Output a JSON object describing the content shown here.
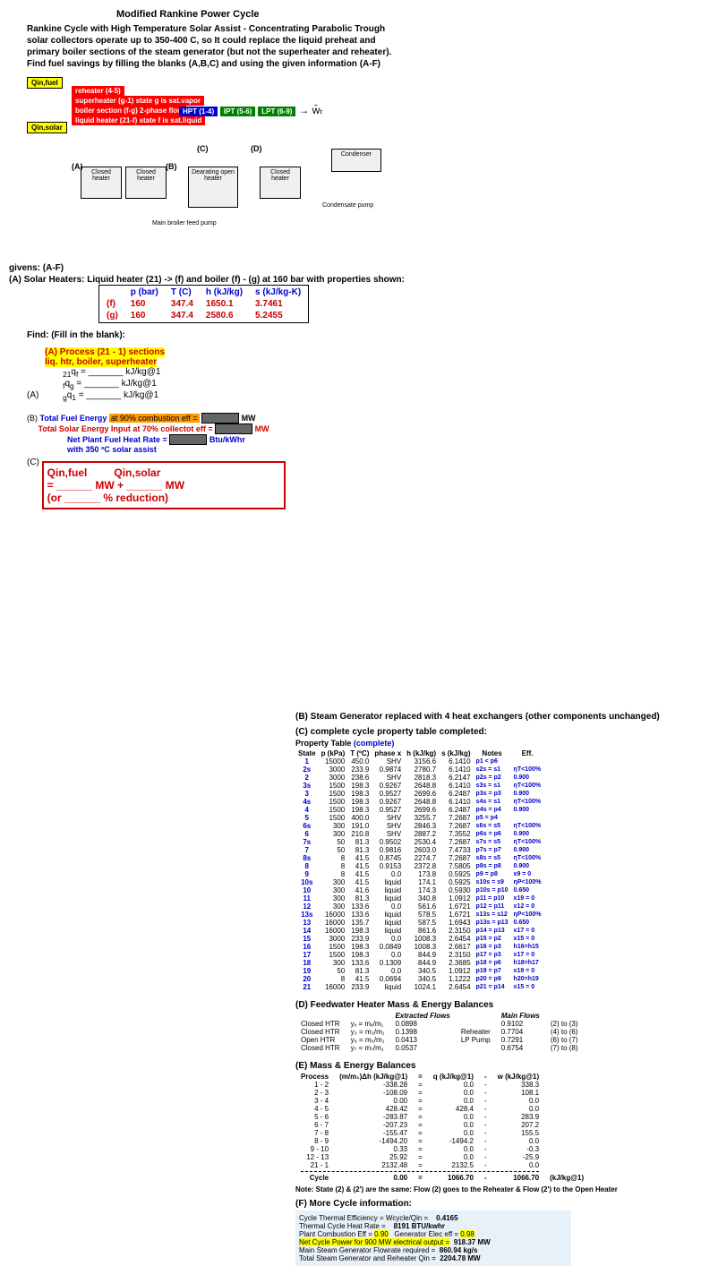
{
  "title": "Modified Rankine Power Cycle",
  "intro1": "Rankine Cycle with High Temperature Solar Assist - Concentrating Parabolic Trough",
  "intro2": "solar collectors operate up to 350-400 C, so It could replace the liquid preheat and",
  "intro3": "primary boiler sections of the steam generator (but not the superheater and reheater).",
  "intro4": "Find fuel savings by filling the blanks (A,B,C) and using the given information (A-F)",
  "diagram": {
    "q_in_fuel": "Qin,fuel",
    "q_in_solar": "Qin,solar",
    "reheater": "reheater (4-5)",
    "superheater": "superheater (g-1) state g is sat.vapor",
    "boiler_section": "boiler section (f-g) 2-phase flow",
    "liquid_heater": "liquid heater (21-f) state f is sat.liquid",
    "hpt": "HPT (1-4)",
    "ipt": "IPT (5-6)",
    "lpt": "LPT (6-9)",
    "condenser": "Condenser",
    "closed_heater": "Closed heater",
    "dearating": "Dearating open heater",
    "main_boiler": "Main broiler feed pump",
    "condensate_pump": "Condensate pump",
    "labels": [
      "(A)",
      "(B)",
      "(C)",
      "(D)"
    ]
  },
  "givens": {
    "header": "givens: (A-F)",
    "line_A": "(A) Solar Heaters: Liquid heater (21) -> (f) and boiler (f) - (g) at 160 bar with properties shown:",
    "table_headers": [
      "p (bar)",
      "T (C)",
      "h (kJ/kg)",
      "s (kJ/kg-K)"
    ],
    "row_f": [
      "(f)",
      "160",
      "347.4",
      "1650.1",
      "3.7461"
    ],
    "row_g": [
      "(g)",
      "160",
      "347.4",
      "2580.6",
      "5.2455"
    ]
  },
  "find_header": "Find: (Fill in the blank):",
  "section_A": {
    "title": "(A)  Process (21 - 1) sections",
    "sub": "liq. htr, boiler, superheater",
    "line1_pre": "21qf =",
    "line1_post": "kJ/kg@1",
    "line2_pre": "fqg =",
    "line2_post": "kJ/kg@1",
    "line3_pre": "gq1 =",
    "line3_post": "kJ/kg@1"
  },
  "section_B": {
    "label": "(B)",
    "line1": "Total Fuel Energy at 90% combustion eff =",
    "unit1": "MW",
    "line2": "Total Solar Energy Input at 70% collectot eff =",
    "unit2": "MW",
    "line3": "Net Plant Fuel Heat Rate =",
    "unit3": "Btu/kWhr",
    "line4": "with 350 ºC solar assist"
  },
  "section_C": {
    "label": "(C)",
    "q1": "Qin,fuel",
    "q2": "Qin,solar",
    "eq": "= ______ MW + ______ MW",
    "or": "(or ______ % reduction)"
  },
  "section_B_header": "(B) Steam Generator replaced with 4 heat exchangers (other components unchanged)",
  "section_C_header": "(C) complete cycle property table completed:",
  "prop_table_title": "Property Table (complete)",
  "prop_headers": [
    "State",
    "p (kPa)",
    "T (ºC)",
    "phase x",
    "h (kJ/kg)",
    "s (kJ/kg)",
    "Notes",
    "Eff."
  ],
  "prop_rows": [
    [
      "1",
      "15000",
      "450.0",
      "SHV",
      "3156.6",
      "6.1410",
      "p1 < p6",
      ""
    ],
    [
      "2s",
      "3000",
      "233.9",
      "0.9874",
      "2780.7",
      "6.1410",
      "s2s = s1",
      "ηT<100%"
    ],
    [
      "2",
      "3000",
      "238.6",
      "SHV",
      "2818.3",
      "6.2147",
      "p2s = p2",
      "0.900"
    ],
    [
      "3s",
      "1500",
      "198.3",
      "0.9267",
      "2648.8",
      "6.1410",
      "s3s = s1",
      "ηT<100%"
    ],
    [
      "3",
      "1500",
      "198.3",
      "0.9527",
      "2699.6",
      "6.2487",
      "p3s = p3",
      "0.900"
    ],
    [
      "4s",
      "1500",
      "198.3",
      "0.9267",
      "2648.8",
      "6.1410",
      "s4s = s1",
      "ηT<100%"
    ],
    [
      "4",
      "1500",
      "198.3",
      "0.9527",
      "2699.6",
      "6.2487",
      "p4s = p4",
      "0.900"
    ],
    [
      "5",
      "1500",
      "400.0",
      "SHV",
      "3255.7",
      "7.2687",
      "p5 = p4",
      ""
    ],
    [
      "6s",
      "300",
      "191.0",
      "SHV",
      "2846.3",
      "7.2687",
      "s6s = s5",
      "ηT<100%"
    ],
    [
      "6",
      "300",
      "210.8",
      "SHV",
      "2887.2",
      "7.3552",
      "p6s = p6",
      "0.900"
    ],
    [
      "7s",
      "50",
      "81.3",
      "0.9502",
      "2530.4",
      "7.2687",
      "s7s = s5",
      "ηT<100%"
    ],
    [
      "7",
      "50",
      "81.3",
      "0.9816",
      "2603.0",
      "7.4733",
      "p7s = p7",
      "0.900"
    ],
    [
      "8s",
      "8",
      "41.5",
      "0.8745",
      "2274.7",
      "7.2687",
      "s8s = s5",
      "ηT<100%"
    ],
    [
      "8",
      "8",
      "41.5",
      "0.9153",
      "2372.8",
      "7.5805",
      "p8s = p8",
      "0.900"
    ],
    [
      "9",
      "8",
      "41.5",
      "0.0",
      "173.8",
      "0.5925",
      "p9 = p8",
      "x9 = 0"
    ],
    [
      "10s",
      "300",
      "41.5",
      "liquid",
      "174.1",
      "0.5925",
      "s10s = s9",
      "ηP<100%"
    ],
    [
      "10",
      "300",
      "41.6",
      "liquid",
      "174.3",
      "0.5930",
      "p10s = p10",
      "0.650"
    ],
    [
      "11",
      "300",
      "81.3",
      "liquid",
      "340.8",
      "1.0912",
      "p11 = p10",
      "x19 = 0"
    ],
    [
      "12",
      "300",
      "133.6",
      "0.0",
      "561.6",
      "1.6721",
      "p12 = p11",
      "x12 = 0"
    ],
    [
      "13s",
      "16000",
      "133.6",
      "liquid",
      "578.5",
      "1.6721",
      "s13s = s12",
      "ηP<100%"
    ],
    [
      "13",
      "16000",
      "135.7",
      "liquid",
      "587.5",
      "1.6943",
      "p13s = p13",
      "0.650"
    ],
    [
      "14",
      "16000",
      "198.3",
      "liquid",
      "861.6",
      "2.3150",
      "p14 = p13",
      "x17 = 0"
    ],
    [
      "15",
      "3000",
      "233.9",
      "0.0",
      "1008.3",
      "2.6454",
      "p15 = p2",
      "x15 = 0"
    ],
    [
      "16",
      "1500",
      "198.3",
      "0.0849",
      "1008.3",
      "2.6617",
      "p16 = p3",
      "h16=h15"
    ],
    [
      "17",
      "1500",
      "198.3",
      "0.0",
      "844.9",
      "2.3150",
      "p17 = p3",
      "x17 = 0"
    ],
    [
      "18",
      "300",
      "133.6",
      "0.1309",
      "844.9",
      "2.3685",
      "p18 = p6",
      "h18=h17"
    ],
    [
      "19",
      "50",
      "81.3",
      "0.0",
      "340.5",
      "1.0912",
      "p19 = p7",
      "x19 = 0"
    ],
    [
      "20",
      "8",
      "41.5",
      "0.0694",
      "340.5",
      "1.1222",
      "p20 = p9",
      "h20=h19"
    ],
    [
      "21",
      "16000",
      "233.9",
      "liquid",
      "1024.1",
      "2.6454",
      "p21 = p14",
      "x15 = 0"
    ]
  ],
  "section_D": {
    "title": "(D)  Feedwater Heater Mass & Energy Balances",
    "col1": "Extracted Flows",
    "col2": "Main Flows",
    "rows": [
      [
        "Closed HTR",
        "yₓ = mₓ/m₁",
        "0.0898",
        "",
        "0.9102",
        "(2) to (3)"
      ],
      [
        "Closed HTR",
        "y₃ = m₃/m₁",
        "0.1398",
        "Reheater",
        "0.7704",
        "(4) to (6)"
      ],
      [
        "Open HTR",
        "y₆ = m₆/m₁",
        "0.0413",
        "LP Pump",
        "0.7291",
        "(6) to (7)"
      ],
      [
        "Closed HTR",
        "y₇ = m₇/m₁",
        "0.0537",
        "",
        "0.6754",
        "(7) to (8)"
      ]
    ]
  },
  "section_E": {
    "title": "(E)   Mass & Energy Balances",
    "headers": [
      "Process",
      "(m/m₁)Δh (kJ/kg@1)",
      "=",
      "q (kJ/kg@1)",
      "-",
      "w (kJ/kg@1)"
    ],
    "rows": [
      [
        "1 - 2",
        "-338.28",
        "=",
        "0.0",
        "-",
        "338.3"
      ],
      [
        "2 - 3",
        "-108.09",
        "=",
        "0.0",
        "-",
        "108.1"
      ],
      [
        "3 - 4",
        "0.00",
        "=",
        "0.0",
        "-",
        "0.0"
      ],
      [
        "4 - 5",
        "428.42",
        "=",
        "428.4",
        "-",
        "0.0"
      ],
      [
        "5 - 6",
        "-283.87",
        "=",
        "0.0",
        "-",
        "283.9"
      ],
      [
        "6 - 7",
        "-207.23",
        "=",
        "0.0",
        "-",
        "207.2"
      ],
      [
        "7 - 8",
        "-155.47",
        "=",
        "0.0",
        "-",
        "155.5"
      ],
      [
        "8 - 9",
        "-1494.20",
        "=",
        "-1494.2",
        "-",
        "0.0"
      ],
      [
        "9 - 10",
        "0.33",
        "=",
        "0.0",
        "-",
        "-0.3"
      ],
      [
        "12 - 13",
        "25.92",
        "=",
        "0.0",
        "-",
        "-25.9"
      ],
      [
        "21 - 1",
        "2132.48",
        "=",
        "2132.5",
        "-",
        "0.0"
      ]
    ],
    "cycle": [
      "Cycle",
      "0.00",
      "=",
      "1066.70",
      "-",
      "1066.70",
      "(kJ/kg@1)"
    ]
  },
  "note_E": "Note: State (2) & (2') are the same:  Flow (2) goes to the Reheater & Flow (2') to the Open Heater",
  "section_F": {
    "title": "(F) More Cycle information:",
    "rows": [
      [
        "Cycle Thermal Efficiency = Wcycle/Qin =",
        "0.4165"
      ],
      [
        "Thermal Cycle Heat Rate =",
        "8191 BTU/kwhr"
      ],
      [
        "Plant Combustion Eff =",
        "0.90",
        "Generator Elec eff =",
        "0.98"
      ],
      [
        "Net Cycle Power for 900 MW electrical  output =",
        "918.37 MW"
      ],
      [
        "Main Steam Generator Flowrate required =",
        "860.94 kg/s"
      ],
      [
        "Total Steam Generator and Reheater Qin =",
        "2204.78 MW"
      ]
    ]
  }
}
